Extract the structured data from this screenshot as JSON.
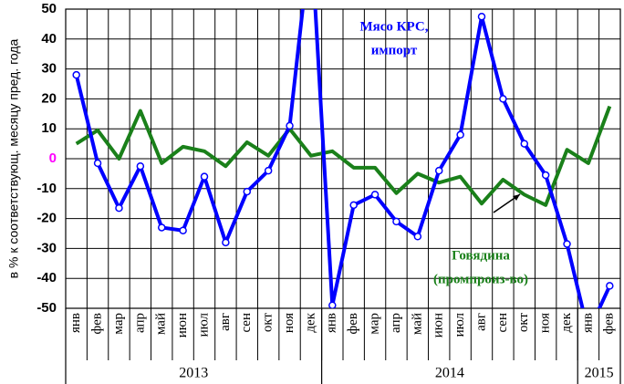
{
  "chart_data": {
    "type": "line",
    "y_label": "в % к соответствующ. месяцу пред. года",
    "categories": [
      "янв",
      "фев",
      "мар",
      "апр",
      "май",
      "июн",
      "июл",
      "авг",
      "сен",
      "окт",
      "ноя",
      "дек",
      "янв",
      "фев",
      "мар",
      "апр",
      "май",
      "июн",
      "июл",
      "авг",
      "сен",
      "окт",
      "ноя",
      "дек",
      "янв",
      "фев"
    ],
    "years": [
      "2013",
      "2014",
      "2015"
    ],
    "ylim": [
      -50,
      50
    ],
    "yticks": [
      -50,
      -40,
      -30,
      -20,
      -10,
      0,
      10,
      20,
      30,
      40,
      50
    ],
    "zero_tick_color": "#ff00ff",
    "grid": true,
    "series": [
      {
        "name": "Мясо КРС, импорт",
        "color": "#0000ff",
        "markers": true,
        "label_lines": [
          "Мясо КРС,",
          "импорт"
        ],
        "values": [
          28,
          -1.5,
          -16.5,
          -2.5,
          -23,
          -24,
          -6,
          -28,
          -11,
          -4,
          11,
          75,
          -49,
          -15.5,
          -12,
          -21,
          -26,
          -4,
          8,
          47.5,
          20,
          5,
          -5.5,
          -28.5,
          -58,
          -42.5
        ]
      },
      {
        "name": "Говядина (промпроиз-во)",
        "color": "#1a801a",
        "markers": false,
        "label_lines": [
          "Говядина",
          "(промпроиз-во)"
        ],
        "values": [
          5,
          9.5,
          0,
          16,
          -1.5,
          4,
          2.5,
          -2.5,
          5.5,
          1,
          10,
          1,
          2.5,
          -3,
          -3,
          -11.5,
          -5,
          -8,
          -6,
          -15,
          -7,
          -12,
          -15.5,
          3,
          -1.5,
          17.5
        ]
      }
    ]
  }
}
